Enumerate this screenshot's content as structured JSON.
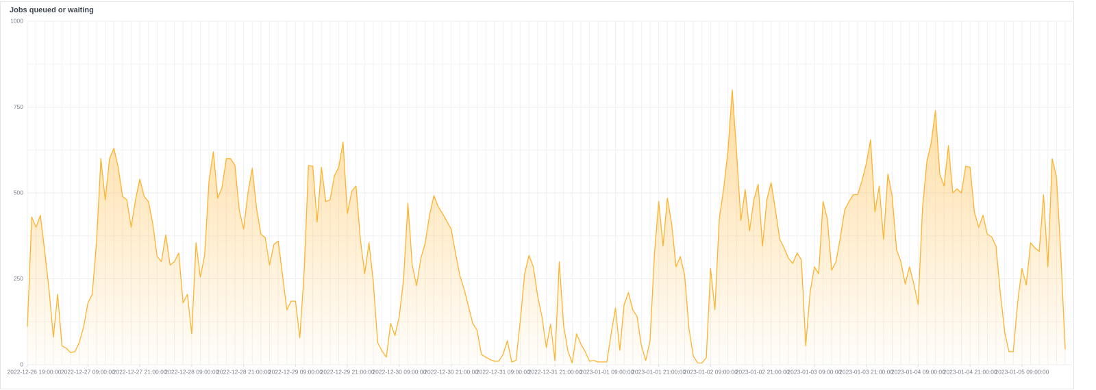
{
  "chart_data": {
    "type": "line",
    "title": "Jobs queued or waiting",
    "color": "#ffb22c",
    "fill": true,
    "grid": true,
    "ylim": [
      0,
      1000
    ],
    "yticks": [
      0,
      250,
      500,
      750,
      1000
    ],
    "xlim": [
      "2022-12-26 19:00:00",
      "2023-01-05 19:00:00"
    ],
    "xticks": [
      "2022-12-26 19:00:00",
      "2022-12-27 09:00:00",
      "2022-12-27 21:00:00",
      "2022-12-28 09:00:00",
      "2022-12-28 21:00:00",
      "2022-12-29 09:00:00",
      "2022-12-29 21:00:00",
      "2022-12-30 09:00:00",
      "2022-12-30 21:00:00",
      "2022-12-31 09:00:00",
      "2022-12-31 21:00:00",
      "2023-01-01 09:00:00",
      "2023-01-01 21:00:00",
      "2023-01-02 09:00:00",
      "2023-01-02 21:00:00",
      "2023-01-03 09:00:00",
      "2023-01-03 21:00:00",
      "2023-01-04 09:00:00",
      "2023-01-04 21:00:00",
      "2023-01-05 09:00:00"
    ],
    "x": [
      "2022-12-26 19:00:00",
      "2022-12-26 20:00:00",
      "2022-12-26 21:00:00",
      "2022-12-26 22:00:00",
      "2022-12-26 23:00:00",
      "2022-12-27 00:00:00",
      "2022-12-27 01:00:00",
      "2022-12-27 02:00:00",
      "2022-12-27 03:00:00",
      "2022-12-27 04:00:00",
      "2022-12-27 05:00:00",
      "2022-12-27 06:00:00",
      "2022-12-27 07:00:00",
      "2022-12-27 08:00:00",
      "2022-12-27 09:00:00",
      "2022-12-27 10:00:00",
      "2022-12-27 11:00:00",
      "2022-12-27 12:00:00",
      "2022-12-27 13:00:00",
      "2022-12-27 14:00:00",
      "2022-12-27 15:00:00",
      "2022-12-27 16:00:00",
      "2022-12-27 17:00:00",
      "2022-12-27 18:00:00",
      "2022-12-27 19:00:00",
      "2022-12-27 20:00:00",
      "2022-12-27 21:00:00",
      "2022-12-27 22:00:00",
      "2022-12-27 23:00:00",
      "2022-12-28 00:00:00",
      "2022-12-28 01:00:00",
      "2022-12-28 02:00:00",
      "2022-12-28 03:00:00",
      "2022-12-28 04:00:00",
      "2022-12-28 05:00:00",
      "2022-12-28 06:00:00",
      "2022-12-28 07:00:00",
      "2022-12-28 08:00:00",
      "2022-12-28 09:00:00",
      "2022-12-28 10:00:00",
      "2022-12-28 11:00:00",
      "2022-12-28 12:00:00",
      "2022-12-28 13:00:00",
      "2022-12-28 14:00:00",
      "2022-12-28 15:00:00",
      "2022-12-28 16:00:00",
      "2022-12-28 17:00:00",
      "2022-12-28 18:00:00",
      "2022-12-28 19:00:00",
      "2022-12-28 20:00:00",
      "2022-12-28 21:00:00",
      "2022-12-28 22:00:00",
      "2022-12-28 23:00:00",
      "2022-12-29 00:00:00",
      "2022-12-29 01:00:00",
      "2022-12-29 02:00:00",
      "2022-12-29 03:00:00",
      "2022-12-29 04:00:00",
      "2022-12-29 05:00:00",
      "2022-12-29 06:00:00",
      "2022-12-29 07:00:00",
      "2022-12-29 08:00:00",
      "2022-12-29 09:00:00",
      "2022-12-29 10:00:00",
      "2022-12-29 11:00:00",
      "2022-12-29 12:00:00",
      "2022-12-29 13:00:00",
      "2022-12-29 14:00:00",
      "2022-12-29 15:00:00",
      "2022-12-29 16:00:00",
      "2022-12-29 17:00:00",
      "2022-12-29 18:00:00",
      "2022-12-29 19:00:00",
      "2022-12-29 20:00:00",
      "2022-12-29 21:00:00",
      "2022-12-29 22:00:00",
      "2022-12-29 23:00:00",
      "2022-12-30 00:00:00",
      "2022-12-30 01:00:00",
      "2022-12-30 02:00:00",
      "2022-12-30 03:00:00",
      "2022-12-30 04:00:00",
      "2022-12-30 05:00:00",
      "2022-12-30 06:00:00",
      "2022-12-30 07:00:00",
      "2022-12-30 08:00:00",
      "2022-12-30 09:00:00",
      "2022-12-30 10:00:00",
      "2022-12-30 11:00:00",
      "2022-12-30 12:00:00",
      "2022-12-30 13:00:00",
      "2022-12-30 14:00:00",
      "2022-12-30 15:00:00",
      "2022-12-30 16:00:00",
      "2022-12-30 17:00:00",
      "2022-12-30 18:00:00",
      "2022-12-30 19:00:00",
      "2022-12-30 20:00:00",
      "2022-12-30 21:00:00",
      "2022-12-30 22:00:00",
      "2022-12-30 23:00:00",
      "2022-12-31 00:00:00",
      "2022-12-31 01:00:00",
      "2022-12-31 02:00:00",
      "2022-12-31 03:00:00",
      "2022-12-31 04:00:00",
      "2022-12-31 05:00:00",
      "2022-12-31 06:00:00",
      "2022-12-31 07:00:00",
      "2022-12-31 08:00:00",
      "2022-12-31 09:00:00",
      "2022-12-31 10:00:00",
      "2022-12-31 11:00:00",
      "2022-12-31 12:00:00",
      "2022-12-31 13:00:00",
      "2022-12-31 14:00:00",
      "2022-12-31 15:00:00",
      "2022-12-31 16:00:00",
      "2022-12-31 17:00:00",
      "2022-12-31 18:00:00",
      "2022-12-31 19:00:00",
      "2022-12-31 20:00:00",
      "2022-12-31 21:00:00",
      "2022-12-31 22:00:00",
      "2022-12-31 23:00:00",
      "2023-01-01 00:00:00",
      "2023-01-01 01:00:00",
      "2023-01-01 02:00:00",
      "2023-01-01 03:00:00",
      "2023-01-01 04:00:00",
      "2023-01-01 05:00:00",
      "2023-01-01 06:00:00",
      "2023-01-01 07:00:00",
      "2023-01-01 08:00:00",
      "2023-01-01 09:00:00",
      "2023-01-01 10:00:00",
      "2023-01-01 11:00:00",
      "2023-01-01 12:00:00",
      "2023-01-01 13:00:00",
      "2023-01-01 14:00:00",
      "2023-01-01 15:00:00",
      "2023-01-01 16:00:00",
      "2023-01-01 17:00:00",
      "2023-01-01 18:00:00",
      "2023-01-01 19:00:00",
      "2023-01-01 20:00:00",
      "2023-01-01 21:00:00",
      "2023-01-01 22:00:00",
      "2023-01-01 23:00:00",
      "2023-01-02 00:00:00",
      "2023-01-02 01:00:00",
      "2023-01-02 02:00:00",
      "2023-01-02 03:00:00",
      "2023-01-02 04:00:00",
      "2023-01-02 05:00:00",
      "2023-01-02 06:00:00",
      "2023-01-02 07:00:00",
      "2023-01-02 08:00:00",
      "2023-01-02 09:00:00",
      "2023-01-02 10:00:00",
      "2023-01-02 11:00:00",
      "2023-01-02 12:00:00",
      "2023-01-02 13:00:00",
      "2023-01-02 14:00:00",
      "2023-01-02 15:00:00",
      "2023-01-02 16:00:00",
      "2023-01-02 17:00:00",
      "2023-01-02 18:00:00",
      "2023-01-02 19:00:00",
      "2023-01-02 20:00:00",
      "2023-01-02 21:00:00",
      "2023-01-02 22:00:00",
      "2023-01-02 23:00:00",
      "2023-01-03 00:00:00",
      "2023-01-03 01:00:00",
      "2023-01-03 02:00:00",
      "2023-01-03 03:00:00",
      "2023-01-03 04:00:00",
      "2023-01-03 05:00:00",
      "2023-01-03 06:00:00",
      "2023-01-03 07:00:00",
      "2023-01-03 08:00:00",
      "2023-01-03 09:00:00",
      "2023-01-03 10:00:00",
      "2023-01-03 11:00:00",
      "2023-01-03 12:00:00",
      "2023-01-03 13:00:00",
      "2023-01-03 14:00:00",
      "2023-01-03 15:00:00",
      "2023-01-03 16:00:00",
      "2023-01-03 17:00:00",
      "2023-01-03 18:00:00",
      "2023-01-03 19:00:00",
      "2023-01-03 20:00:00",
      "2023-01-03 21:00:00",
      "2023-01-03 22:00:00",
      "2023-01-03 23:00:00",
      "2023-01-04 00:00:00",
      "2023-01-04 01:00:00",
      "2023-01-04 02:00:00",
      "2023-01-04 03:00:00",
      "2023-01-04 04:00:00",
      "2023-01-04 05:00:00",
      "2023-01-04 06:00:00",
      "2023-01-04 07:00:00",
      "2023-01-04 08:00:00",
      "2023-01-04 09:00:00",
      "2023-01-04 10:00:00",
      "2023-01-04 11:00:00",
      "2023-01-04 12:00:00",
      "2023-01-04 13:00:00",
      "2023-01-04 14:00:00",
      "2023-01-04 15:00:00",
      "2023-01-04 16:00:00",
      "2023-01-04 17:00:00",
      "2023-01-04 18:00:00",
      "2023-01-04 19:00:00",
      "2023-01-04 20:00:00",
      "2023-01-04 21:00:00",
      "2023-01-04 22:00:00",
      "2023-01-04 23:00:00",
      "2023-01-05 00:00:00",
      "2023-01-05 01:00:00",
      "2023-01-05 02:00:00",
      "2023-01-05 03:00:00",
      "2023-01-05 04:00:00",
      "2023-01-05 05:00:00",
      "2023-01-05 06:00:00",
      "2023-01-05 07:00:00",
      "2023-01-05 08:00:00",
      "2023-01-05 09:00:00",
      "2023-01-05 10:00:00",
      "2023-01-05 11:00:00",
      "2023-01-05 12:00:00",
      "2023-01-05 13:00:00",
      "2023-01-05 14:00:00",
      "2023-01-05 15:00:00",
      "2023-01-05 16:00:00",
      "2023-01-05 17:00:00",
      "2023-01-05 18:00:00",
      "2023-01-05 19:00:00"
    ],
    "values": [
      110,
      430,
      400,
      435,
      330,
      220,
      80,
      205,
      55,
      48,
      35,
      38,
      65,
      110,
      180,
      205,
      360,
      600,
      480,
      600,
      630,
      575,
      490,
      480,
      400,
      480,
      540,
      490,
      475,
      410,
      315,
      300,
      378,
      290,
      300,
      325,
      180,
      205,
      90,
      355,
      255,
      320,
      535,
      620,
      485,
      515,
      600,
      600,
      580,
      450,
      395,
      500,
      572,
      455,
      380,
      370,
      290,
      350,
      360,
      260,
      160,
      185,
      185,
      78,
      270,
      580,
      578,
      415,
      575,
      475,
      480,
      550,
      575,
      648,
      440,
      505,
      520,
      365,
      265,
      355,
      240,
      65,
      40,
      22,
      120,
      85,
      140,
      250,
      470,
      290,
      230,
      310,
      355,
      435,
      492,
      460,
      440,
      418,
      395,
      325,
      260,
      220,
      170,
      120,
      100,
      30,
      22,
      15,
      10,
      10,
      30,
      70,
      8,
      12,
      130,
      265,
      318,
      285,
      200,
      140,
      50,
      118,
      12,
      300,
      115,
      40,
      5,
      90,
      60,
      38,
      10,
      12,
      8,
      8,
      8,
      90,
      165,
      42,
      175,
      210,
      160,
      140,
      55,
      12,
      70,
      320,
      475,
      345,
      485,
      410,
      285,
      315,
      260,
      105,
      25,
      5,
      5,
      20,
      280,
      160,
      425,
      510,
      620,
      800,
      620,
      420,
      510,
      390,
      480,
      525,
      345,
      480,
      530,
      450,
      365,
      340,
      310,
      295,
      325,
      305,
      55,
      210,
      285,
      265,
      475,
      425,
      275,
      300,
      370,
      450,
      475,
      495,
      495,
      535,
      585,
      655,
      445,
      520,
      365,
      555,
      490,
      335,
      300,
      235,
      285,
      235,
      175,
      455,
      590,
      645,
      740,
      555,
      520,
      638,
      500,
      512,
      500,
      578,
      575,
      445,
      400,
      435,
      380,
      372,
      345,
      210,
      95,
      38,
      38,
      180,
      280,
      232,
      355,
      340,
      330,
      495,
      285,
      600,
      545,
      320,
      45
    ]
  }
}
